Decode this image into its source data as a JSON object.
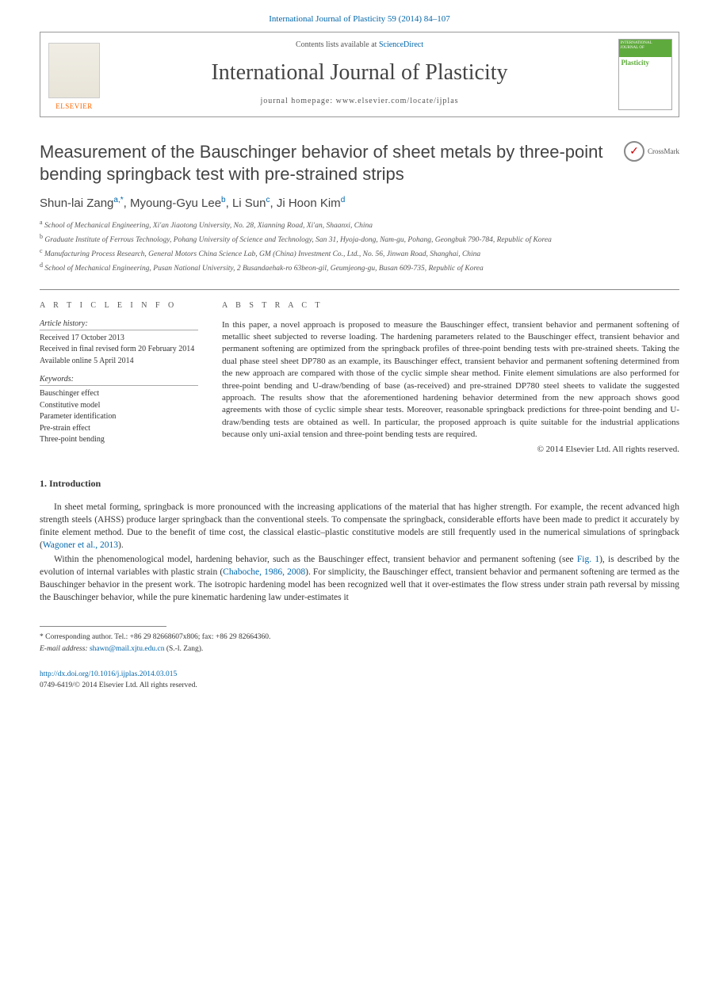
{
  "header": {
    "citation": "International Journal of Plasticity 59 (2014) 84–107"
  },
  "masthead": {
    "contents_prefix": "Contents lists available at ",
    "contents_link": "ScienceDirect",
    "journal_name": "International Journal of Plasticity",
    "homepage_label": "journal homepage: www.elsevier.com/locate/ijplas",
    "elsevier_label": "ELSEVIER",
    "cover_top": "INTERNATIONAL JOURNAL OF",
    "cover_title": "Plasticity"
  },
  "article": {
    "title": "Measurement of the Bauschinger behavior of sheet metals by three-point bending springback test with pre-strained strips",
    "crossmark_label": "CrossMark",
    "authors_html": "Shun-lai Zang|a,*|, Myoung-Gyu Lee|b|, Li Sun|c|, Ji Hoon Kim|d",
    "affiliations": [
      {
        "sup": "a",
        "text": "School of Mechanical Engineering, Xi'an Jiaotong University, No. 28, Xianning Road, Xi'an, Shaanxi, China"
      },
      {
        "sup": "b",
        "text": "Graduate Institute of Ferrous Technology, Pohang University of Science and Technology, San 31, Hyoja-dong, Nam-gu, Pohang, Geongbuk 790-784, Republic of Korea"
      },
      {
        "sup": "c",
        "text": "Manufacturing Process Research, General Motors China Science Lab, GM (China) Investment Co., Ltd., No. 56, Jinwan Road, Shanghai, China"
      },
      {
        "sup": "d",
        "text": "School of Mechanical Engineering, Pusan National University, 2 Busandaehak-ro 63beon-gil, Geumjeong-gu, Busan 609-735, Republic of Korea"
      }
    ]
  },
  "info": {
    "heading": "A R T I C L E   I N F O",
    "history_heading": "Article history:",
    "history": [
      "Received 17 October 2013",
      "Received in final revised form 20 February 2014",
      "Available online 5 April 2014"
    ],
    "keywords_heading": "Keywords:",
    "keywords": [
      "Bauschinger effect",
      "Constitutive model",
      "Parameter identification",
      "Pre-strain effect",
      "Three-point bending"
    ]
  },
  "abstract": {
    "heading": "A B S T R A C T",
    "text": "In this paper, a novel approach is proposed to measure the Bauschinger effect, transient behavior and permanent softening of metallic sheet subjected to reverse loading. The hardening parameters related to the Bauschinger effect, transient behavior and permanent softening are optimized from the springback profiles of three-point bending tests with pre-strained sheets. Taking the dual phase steel sheet DP780 as an example, its Bauschinger effect, transient behavior and permanent softening determined from the new approach are compared with those of the cyclic simple shear method. Finite element simulations are also performed for three-point bending and U-draw/bending of base (as-received) and pre-strained DP780 steel sheets to validate the suggested approach. The results show that the aforementioned hardening behavior determined from the new approach shows good agreements with those of cyclic simple shear tests. Moreover, reasonable springback predictions for three-point bending and U-draw/bending tests are obtained as well. In particular, the proposed approach is quite suitable for the industrial applications because only uni-axial tension and three-point bending tests are required.",
    "copyright": "© 2014 Elsevier Ltd. All rights reserved."
  },
  "body": {
    "section1_heading": "1. Introduction",
    "para1_a": "In sheet metal forming, springback is more pronounced with the increasing applications of the material that has higher strength. For example, the recent advanced high strength steels (AHSS) produce larger springback than the conventional steels. To compensate the springback, considerable efforts have been made to predict it accurately by finite element method. Due to the benefit of time cost, the classical elastic–plastic constitutive models are still frequently used in the numerical simulations of springback (",
    "para1_link": "Wagoner et al., 2013",
    "para1_b": ").",
    "para2_a": "Within the phenomenological model, hardening behavior, such as the Bauschinger effect, transient behavior and permanent softening (see ",
    "para2_fig": "Fig. 1",
    "para2_b": "), is described by the evolution of internal variables with plastic strain (",
    "para2_link": "Chaboche, 1986, 2008",
    "para2_c": "). For simplicity, the Bauschinger effect, transient behavior and permanent softening are termed as the Bauschinger behavior in the present work. The isotropic hardening model has been recognized well that it over-estimates the flow stress under strain path reversal by missing the Bauschinger behavior, while the pure kinematic hardening law under-estimates it"
  },
  "footnotes": {
    "corr_marker": "*",
    "corr_text": "Corresponding author. Tel.: +86 29 82668607x806; fax: +86 29 82664360.",
    "email_label": "E-mail address:",
    "email": "shawn@mail.xjtu.edu.cn",
    "email_suffix": "(S.-l. Zang)."
  },
  "doi": {
    "url": "http://dx.doi.org/10.1016/j.ijplas.2014.03.015",
    "issn_line": "0749-6419/© 2014 Elsevier Ltd. All rights reserved."
  },
  "colors": {
    "link": "#0066aa",
    "accent_green": "#5faa3c",
    "elsevier_orange": "#ff6600"
  }
}
